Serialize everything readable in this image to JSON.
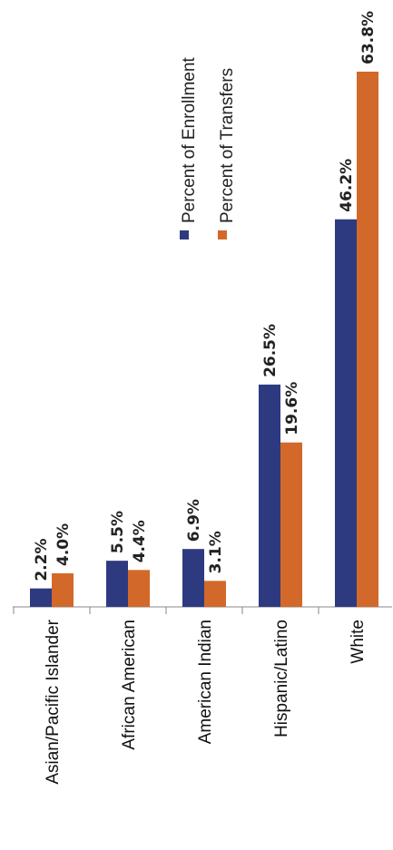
{
  "chart_data": {
    "type": "bar",
    "orientation": "rotated-90",
    "categories": [
      "Asian/Pacific Islander",
      "African American",
      "American Indian",
      "Hispanic/Latino",
      "White"
    ],
    "series": [
      {
        "name": "Percent of Enrollment",
        "color": "#2e3a80",
        "values": [
          2.2,
          5.5,
          6.9,
          26.5,
          46.2
        ],
        "labels": [
          "2.2%",
          "5.5%",
          "6.9%",
          "26.5%",
          "46.2%"
        ]
      },
      {
        "name": "Percent of Transfers",
        "color": "#d2692a",
        "values": [
          4.0,
          4.4,
          3.1,
          19.6,
          63.8
        ],
        "labels": [
          "4.0%",
          "4.4%",
          "3.1%",
          "19.6%",
          "63.8%"
        ]
      }
    ],
    "ylim": [
      0,
      70
    ],
    "grid": false,
    "legend": "upper-middle"
  }
}
